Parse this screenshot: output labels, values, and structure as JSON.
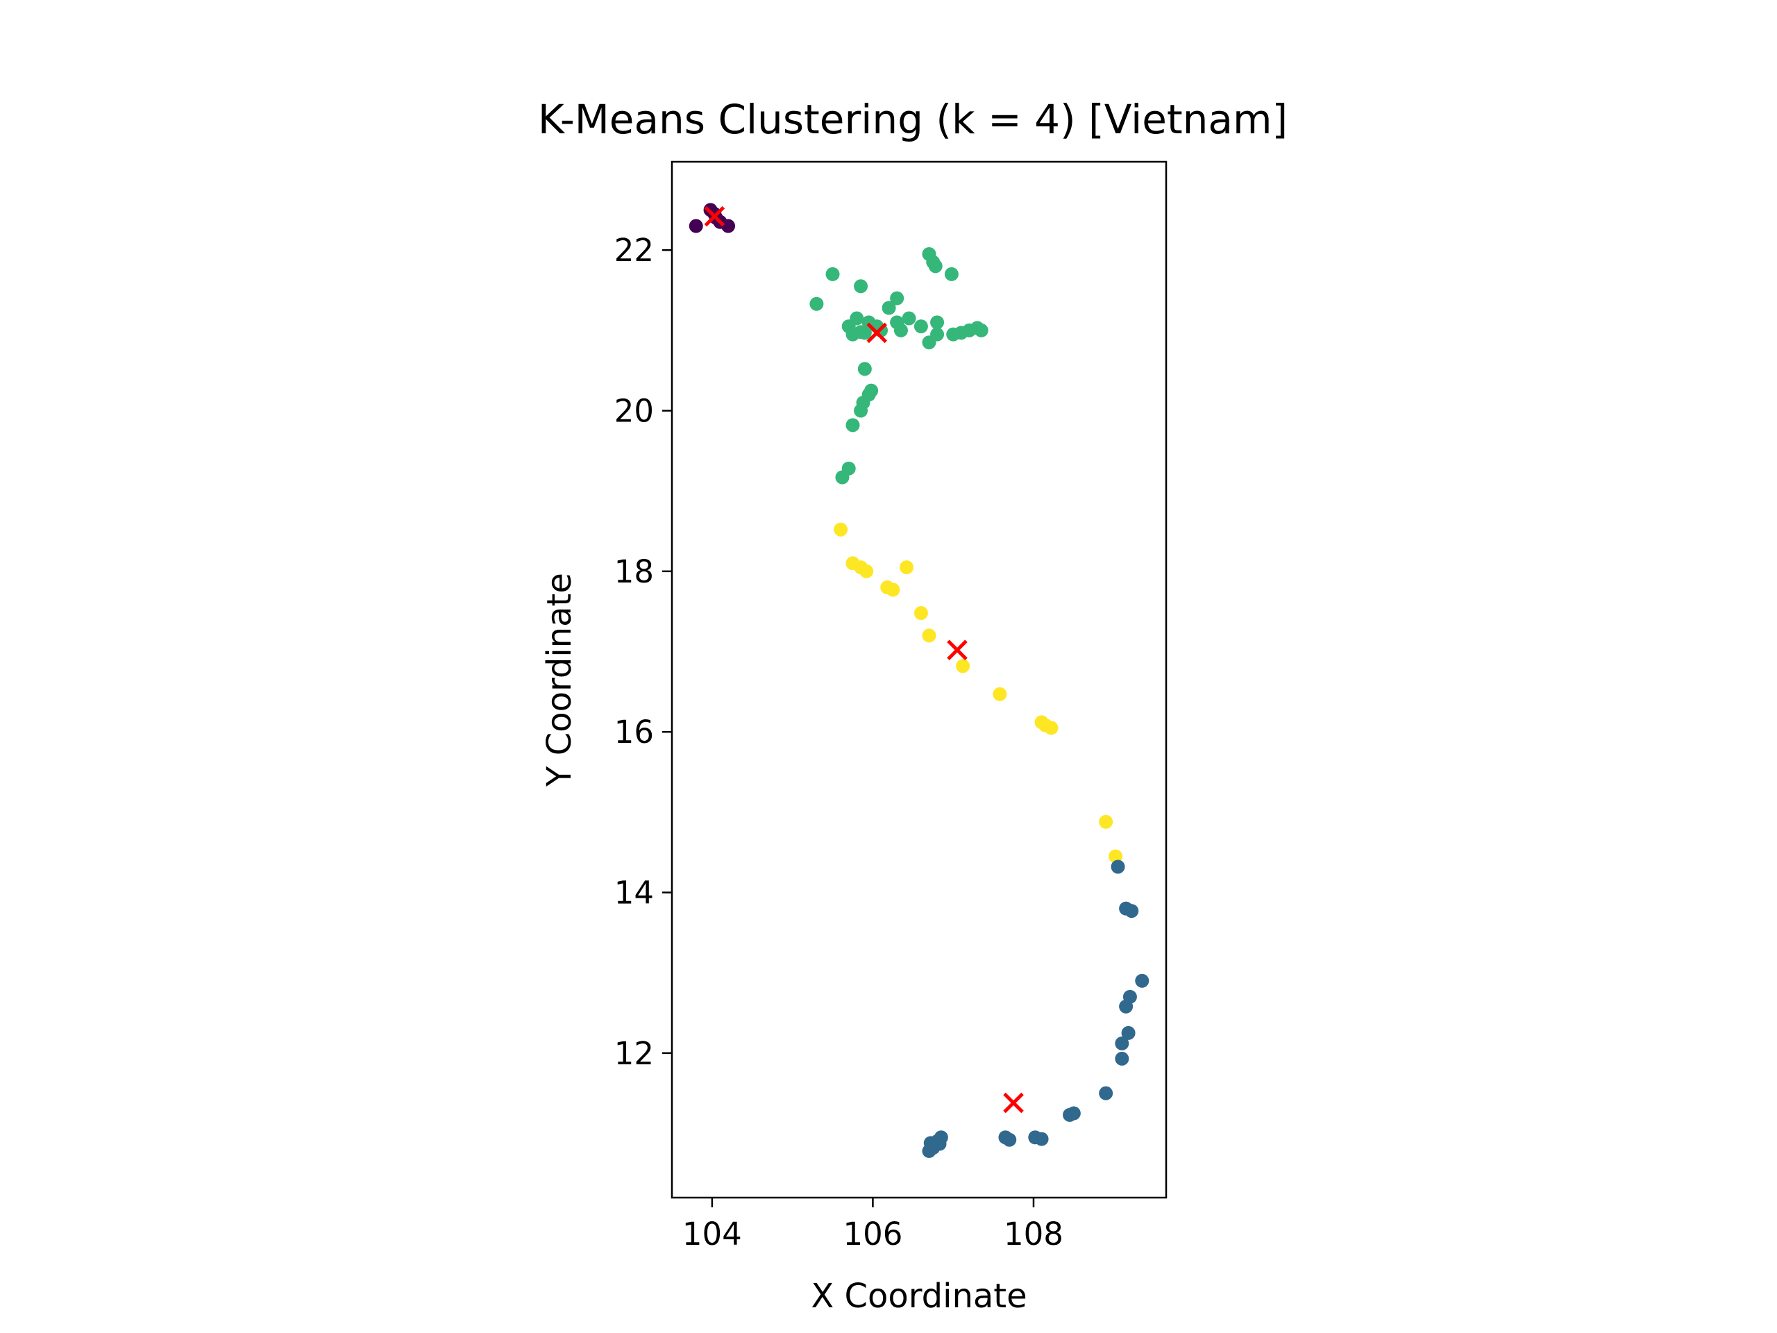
{
  "chart_data": {
    "type": "scatter",
    "title": "K-Means Clustering (k = 4) [Vietnam]",
    "xlabel": "X Coordinate",
    "ylabel": "Y Coordinate",
    "xlim": [
      103.5,
      109.65
    ],
    "ylim": [
      10.2,
      23.1
    ],
    "xticks": [
      104,
      106,
      108
    ],
    "yticks": [
      12,
      14,
      16,
      18,
      20,
      22
    ],
    "grid": false,
    "legend": "none",
    "clusters": [
      {
        "color": "#440154",
        "points": [
          [
            103.8,
            22.3
          ],
          [
            103.98,
            22.5
          ],
          [
            104.03,
            22.45
          ],
          [
            104.1,
            22.35
          ],
          [
            104.2,
            22.3
          ],
          [
            104.05,
            22.4
          ]
        ]
      },
      {
        "color": "#35b779",
        "points": [
          [
            105.3,
            21.33
          ],
          [
            105.5,
            21.7
          ],
          [
            105.85,
            21.55
          ],
          [
            106.3,
            21.4
          ],
          [
            106.2,
            21.28
          ],
          [
            105.7,
            21.05
          ],
          [
            105.8,
            21.15
          ],
          [
            105.95,
            21.1
          ],
          [
            105.75,
            20.95
          ],
          [
            105.85,
            20.98
          ],
          [
            106.1,
            21.0
          ],
          [
            106.3,
            21.1
          ],
          [
            106.45,
            21.15
          ],
          [
            106.35,
            21.0
          ],
          [
            106.6,
            21.05
          ],
          [
            106.7,
            20.85
          ],
          [
            106.8,
            21.1
          ],
          [
            106.8,
            20.95
          ],
          [
            107.0,
            20.95
          ],
          [
            107.1,
            20.97
          ],
          [
            107.2,
            21.0
          ],
          [
            107.3,
            21.03
          ],
          [
            107.35,
            21.0
          ],
          [
            106.7,
            21.95
          ],
          [
            106.75,
            21.85
          ],
          [
            106.78,
            21.8
          ],
          [
            106.98,
            21.7
          ],
          [
            105.9,
            20.52
          ],
          [
            105.95,
            20.2
          ],
          [
            105.98,
            20.25
          ],
          [
            105.88,
            20.1
          ],
          [
            105.85,
            20.0
          ],
          [
            105.75,
            19.82
          ],
          [
            105.7,
            19.28
          ],
          [
            105.62,
            19.17
          ],
          [
            105.9,
            20.97
          ],
          [
            106.05,
            21.05
          ]
        ]
      },
      {
        "color": "#fde725",
        "points": [
          [
            105.6,
            18.52
          ],
          [
            105.75,
            18.1
          ],
          [
            105.85,
            18.05
          ],
          [
            105.92,
            18.0
          ],
          [
            106.42,
            18.05
          ],
          [
            106.18,
            17.8
          ],
          [
            106.25,
            17.77
          ],
          [
            106.6,
            17.48
          ],
          [
            106.7,
            17.2
          ],
          [
            107.12,
            16.82
          ],
          [
            107.58,
            16.47
          ],
          [
            108.1,
            16.12
          ],
          [
            108.15,
            16.08
          ],
          [
            108.22,
            16.05
          ],
          [
            108.9,
            14.88
          ],
          [
            109.02,
            14.45
          ]
        ]
      },
      {
        "color": "#31688e",
        "points": [
          [
            109.05,
            14.32
          ],
          [
            109.15,
            13.8
          ],
          [
            109.22,
            13.77
          ],
          [
            109.35,
            12.9
          ],
          [
            109.2,
            12.7
          ],
          [
            109.15,
            12.58
          ],
          [
            109.18,
            12.25
          ],
          [
            109.1,
            12.12
          ],
          [
            109.1,
            11.93
          ],
          [
            108.9,
            11.5
          ],
          [
            108.45,
            11.23
          ],
          [
            108.5,
            11.25
          ],
          [
            108.02,
            10.95
          ],
          [
            108.1,
            10.93
          ],
          [
            107.65,
            10.95
          ],
          [
            107.7,
            10.92
          ],
          [
            106.7,
            10.78
          ],
          [
            106.75,
            10.82
          ],
          [
            106.72,
            10.88
          ],
          [
            106.8,
            10.9
          ],
          [
            106.85,
            10.95
          ],
          [
            106.83,
            10.87
          ]
        ]
      }
    ],
    "centroids": {
      "color": "#ff0000",
      "marker": "x",
      "points": [
        [
          104.03,
          22.42
        ],
        [
          106.05,
          20.97
        ],
        [
          107.05,
          17.02
        ],
        [
          107.75,
          11.38
        ]
      ]
    }
  }
}
